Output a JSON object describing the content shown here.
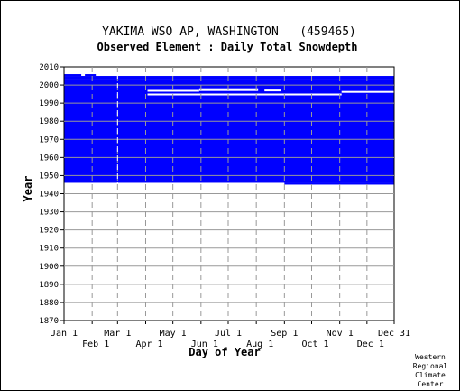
{
  "chart_data": {
    "type": "heatmap",
    "title": "YAKIMA WSO AP, WASHINGTON   (459465)",
    "subtitle": "Observed Element : Daily Total Snowdepth",
    "xlabel": "Day of Year",
    "ylabel": "Year",
    "credit_lines": [
      "Western",
      "Regional",
      "Climate",
      "Center"
    ],
    "xlim": [
      1,
      365
    ],
    "ylim": [
      1870,
      2010
    ],
    "y_ticks": [
      1870,
      1880,
      1890,
      1900,
      1910,
      1920,
      1930,
      1940,
      1950,
      1960,
      1970,
      1980,
      1990,
      2000,
      2010
    ],
    "x_ticks_upper": [
      {
        "label": "Jan 1",
        "day": 1
      },
      {
        "label": "Mar 1",
        "day": 60
      },
      {
        "label": "May 1",
        "day": 121
      },
      {
        "label": "Jul 1",
        "day": 182
      },
      {
        "label": "Sep 1",
        "day": 244
      },
      {
        "label": "Nov 1",
        "day": 305
      },
      {
        "label": "Dec 31",
        "day": 365
      }
    ],
    "x_ticks_lower": [
      {
        "label": "Feb 1",
        "day": 32
      },
      {
        "label": "Apr 1",
        "day": 91
      },
      {
        "label": "Jun 1",
        "day": 152
      },
      {
        "label": "Aug 1",
        "day": 213
      },
      {
        "label": "Oct 1",
        "day": 274
      },
      {
        "label": "Dec 1",
        "day": 335
      }
    ],
    "data_color": "#0000ff",
    "grid": true,
    "data_blocks": [
      {
        "day_start": 1,
        "day_end": 365,
        "year_start": 1946,
        "year_end": 2003
      },
      {
        "day_start": 1,
        "day_end": 365,
        "year_start": 2003,
        "year_end": 2005
      },
      {
        "day_start": 244,
        "day_end": 365,
        "year_start": 1945,
        "year_end": 1946
      },
      {
        "day_start": 24,
        "day_end": 36,
        "year_start": 2005,
        "year_end": 2006
      },
      {
        "day_start": 1,
        "day_end": 20,
        "year_start": 2005,
        "year_end": 2006
      }
    ],
    "gap_marks": [
      {
        "day_start": 93,
        "day_end": 150,
        "year": 1996.8
      },
      {
        "day_start": 150,
        "day_end": 215,
        "year": 1997.2
      },
      {
        "day_start": 222,
        "day_end": 240,
        "year": 1997.0
      },
      {
        "day_start": 93,
        "day_end": 307,
        "year": 1994.8
      },
      {
        "day_start": 307,
        "day_end": 365,
        "year": 1996.2
      }
    ],
    "dashed_vline_days": [
      60
    ]
  }
}
